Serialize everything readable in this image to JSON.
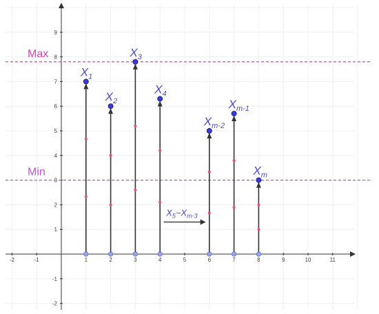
{
  "chart_data": {
    "type": "stem",
    "x_ticks": [
      -2,
      -1,
      1,
      2,
      3,
      4,
      5,
      6,
      7,
      8,
      9,
      10,
      11
    ],
    "y_ticks": [
      -2,
      -1,
      1,
      2,
      3,
      4,
      5,
      6,
      7,
      8,
      9
    ],
    "xlim": [
      -2.3,
      12.1
    ],
    "ylim": [
      -2.3,
      10.0
    ],
    "reference_lines": [
      {
        "name": "Max",
        "y": 7.8,
        "color": "#e040b0"
      },
      {
        "name": "Min",
        "y": 3.0,
        "color": "#c050e0"
      }
    ],
    "points": [
      {
        "label": "X",
        "sub": "1",
        "x": 1,
        "y": 7.0
      },
      {
        "label": "X",
        "sub": "2",
        "x": 2,
        "y": 6.0
      },
      {
        "label": "X",
        "sub": "3",
        "x": 3,
        "y": 7.8
      },
      {
        "label": "X",
        "sub": "4",
        "x": 4,
        "y": 6.3
      },
      {
        "label": "X",
        "sub": "m-2",
        "x": 6,
        "y": 5.0
      },
      {
        "label": "X",
        "sub": "m-1",
        "x": 7,
        "y": 5.7
      },
      {
        "label": "X",
        "sub": "m",
        "x": 8,
        "y": 3.0
      }
    ],
    "gap_annotation": {
      "text": "X",
      "sub1": "5",
      "mid": "~X",
      "sub2": "m-3"
    },
    "colors": {
      "stem": "#333333",
      "point": "#3a3ad6",
      "midpoint": "#e05080",
      "baseline_point": "#9aa4e8"
    }
  }
}
